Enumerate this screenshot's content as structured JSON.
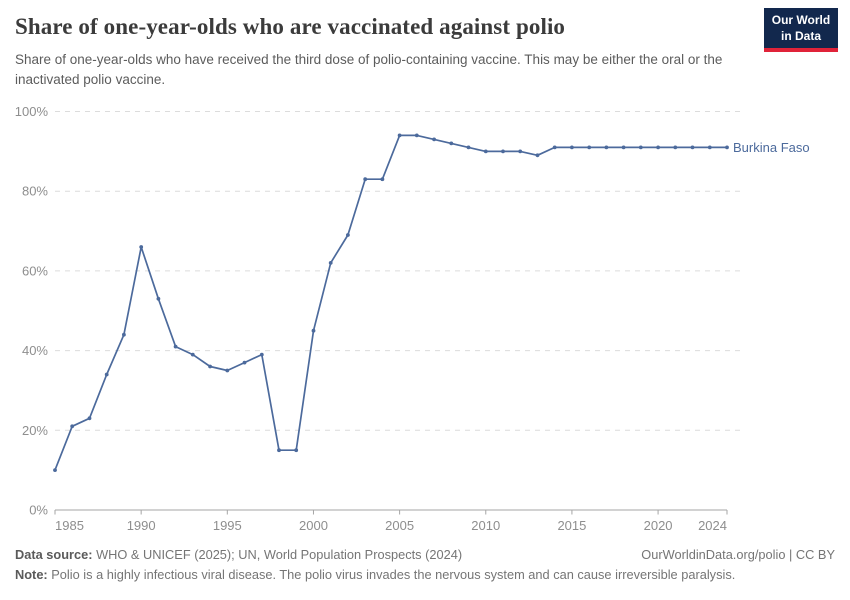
{
  "header": {
    "title": "Share of one-year-olds who are vaccinated against polio",
    "subtitle": "Share of one-year-olds who have received the third dose of polio-containing vaccine. This may be either the oral or the inactivated polio vaccine.",
    "logo": {
      "line1": "Our World",
      "line2": "in Data"
    }
  },
  "footer": {
    "datasource_label": "Data source:",
    "datasource_text": " WHO & UNICEF (2025); UN, World Population Prospects (2024)",
    "rights": "OurWorldinData.org/polio | CC BY",
    "note_label": "Note:",
    "note_text": " Polio is a highly infectious viral disease. The polio virus invades the nervous system and can cause irreversible paralysis."
  },
  "colors": {
    "line": "#4C6A9C",
    "entity_label": "#4C6A9C",
    "grid": "#dcdcdc",
    "axis": "#a5a5a5",
    "tick_label": "#8e8e8e",
    "logo_bg": "#12284d",
    "logo_stripe": "#e02339"
  },
  "chart_data": {
    "type": "line",
    "title": "Share of one-year-olds who are vaccinated against polio",
    "entity": "Burkina Faso",
    "x": [
      1985,
      1986,
      1987,
      1988,
      1989,
      1990,
      1991,
      1992,
      1993,
      1994,
      1995,
      1996,
      1997,
      1998,
      1999,
      2000,
      2001,
      2002,
      2003,
      2004,
      2005,
      2006,
      2007,
      2008,
      2009,
      2010,
      2011,
      2012,
      2013,
      2014,
      2015,
      2016,
      2017,
      2018,
      2019,
      2020,
      2021,
      2022,
      2023,
      2024
    ],
    "values": [
      10,
      21,
      23,
      34,
      44,
      66,
      53,
      41,
      39,
      36,
      35,
      37,
      39,
      15,
      15,
      45,
      62,
      69,
      83,
      83,
      94,
      94,
      93,
      92,
      91,
      90,
      90,
      90,
      89,
      91,
      91,
      91,
      91,
      91,
      91,
      91,
      91,
      91,
      91,
      91
    ],
    "xlim": [
      1985,
      2024
    ],
    "ylim": [
      0,
      100
    ],
    "x_ticks": [
      1985,
      1990,
      1995,
      2000,
      2005,
      2010,
      2015,
      2020,
      2024
    ],
    "y_ticks": [
      0,
      20,
      40,
      60,
      80,
      100
    ],
    "y_tick_suffix": "%",
    "grid": true,
    "legend_position": "end-of-line-label",
    "xlabel": "",
    "ylabel": ""
  }
}
